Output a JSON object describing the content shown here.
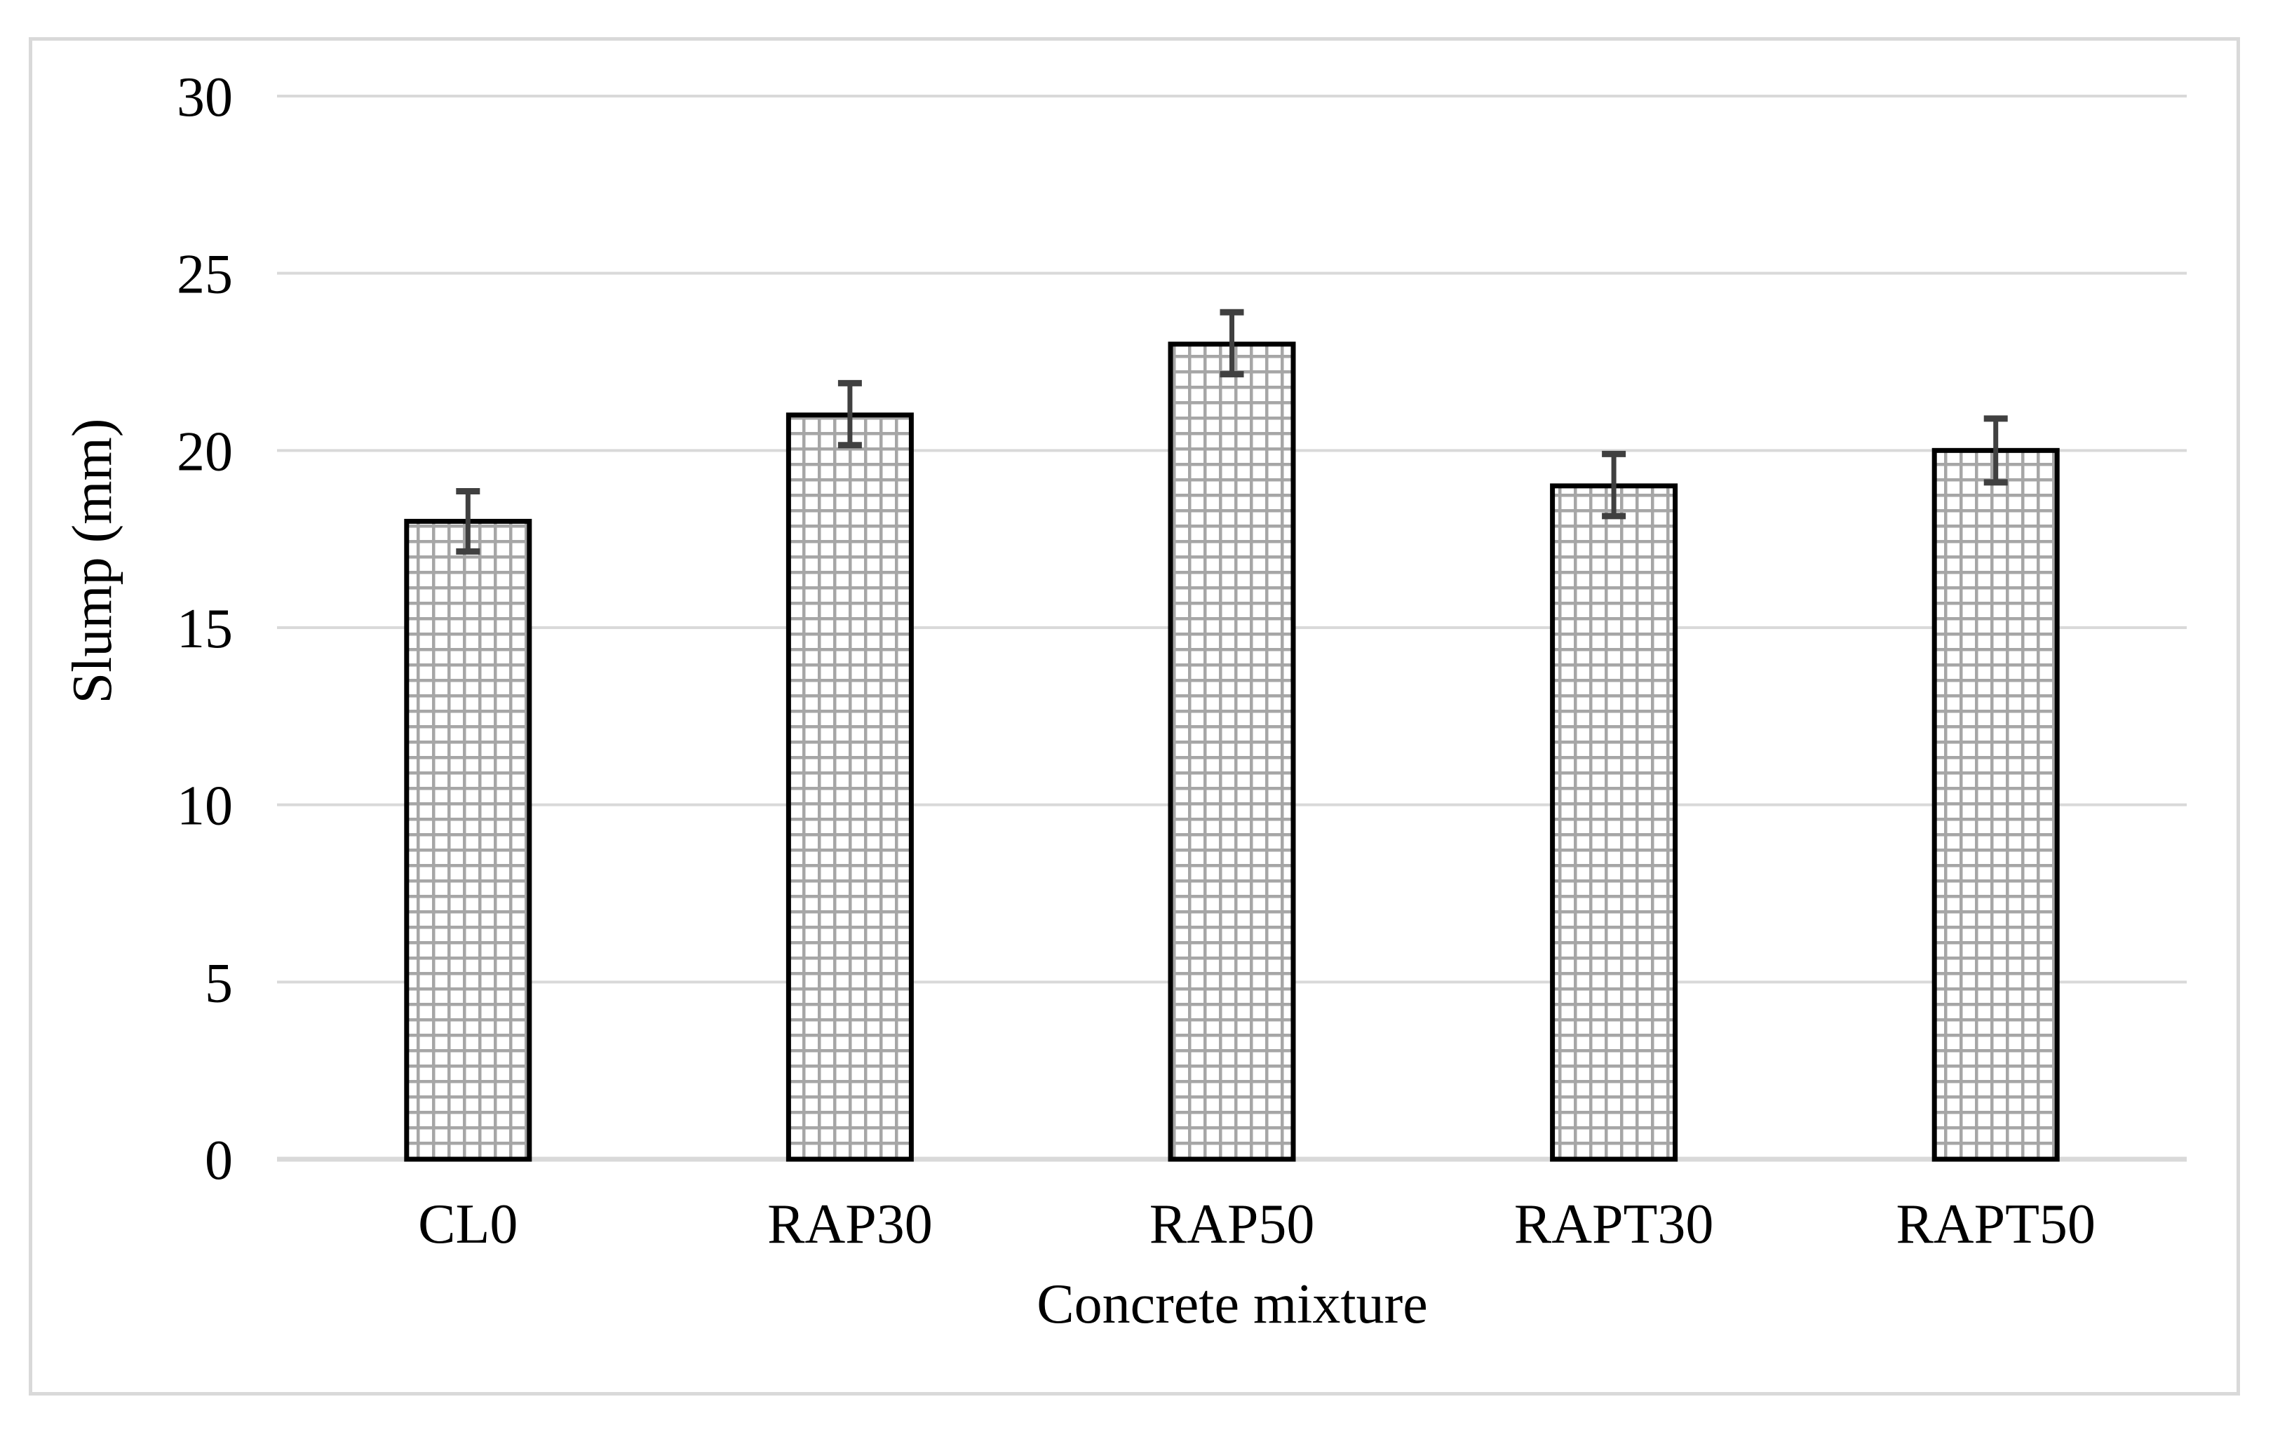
{
  "chart_data": {
    "type": "bar",
    "categories": [
      "CL0",
      "RAP30",
      "RAP50",
      "RAPT30",
      "RAPT50"
    ],
    "values": [
      18,
      21,
      23,
      19,
      20
    ],
    "error_plus": [
      0.85,
      0.9,
      0.9,
      0.9,
      0.9
    ],
    "error_minus": [
      0.85,
      0.85,
      0.85,
      0.85,
      0.9
    ],
    "title": "",
    "xlabel": "Concrete mixture",
    "ylabel": "Slump (mm)",
    "ylim": [
      0,
      30
    ],
    "ytick_step": 5,
    "yticks": [
      0,
      5,
      10,
      15,
      20,
      25,
      30
    ],
    "grid": "horizontal",
    "legend": "none",
    "bar_fill": "crosshatch-grid pattern on white",
    "colors": {
      "background": "#FFFFFF",
      "figure_border": "#D9D9D9",
      "gridline": "#D9D9D9",
      "axis_line": "#D9D9D9",
      "bar_pattern_line": "#A6A6A6",
      "bar_border": "#000000",
      "error_bar": "#404040",
      "text": "#000000"
    }
  }
}
